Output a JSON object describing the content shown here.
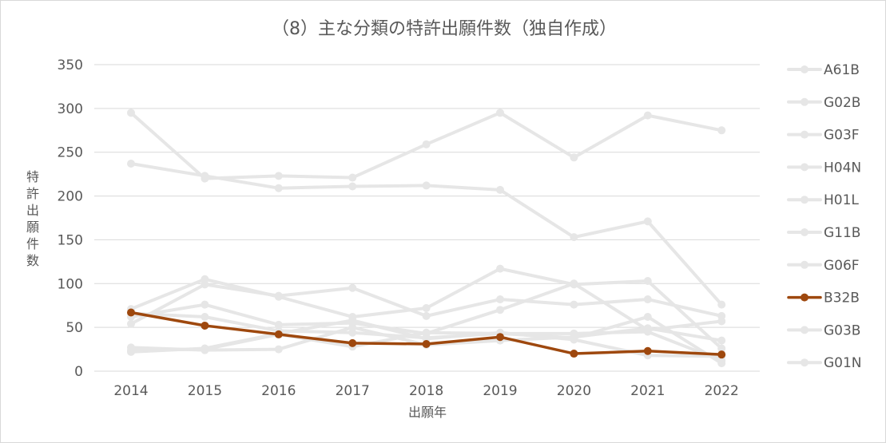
{
  "chart_data": {
    "type": "line",
    "title": "（8）主な分類の特許出願件数（独自作成）",
    "xlabel": "出願年",
    "ylabel_chars": [
      "特",
      "許",
      "出",
      "願",
      "件",
      "数"
    ],
    "categories": [
      "2014",
      "2015",
      "2016",
      "2017",
      "2018",
      "2019",
      "2020",
      "2021",
      "2022"
    ],
    "ylim": [
      0,
      350
    ],
    "yticks": [
      0,
      50,
      100,
      150,
      200,
      250,
      300,
      350
    ],
    "grid": true,
    "legend_position": "right",
    "highlight_series": "B32B",
    "colors": {
      "highlight": "#9e480e",
      "muted": "#e6e6e6",
      "text": "#595959",
      "grid": "#d9d9d9"
    },
    "series": [
      {
        "name": "A61B",
        "values": [
          295,
          220,
          223,
          221,
          259,
          295,
          244,
          292,
          275
        ]
      },
      {
        "name": "G02B",
        "values": [
          237,
          223,
          209,
          211,
          212,
          207,
          153,
          171,
          76
        ]
      },
      {
        "name": "G03F",
        "values": [
          71,
          105,
          85,
          62,
          72,
          117,
          99,
          103,
          26
        ]
      },
      {
        "name": "H04N",
        "values": [
          54,
          99,
          86,
          95,
          63,
          82,
          76,
          82,
          63
        ]
      },
      {
        "name": "H01L",
        "values": [
          62,
          76,
          53,
          55,
          43,
          70,
          100,
          47,
          57
        ]
      },
      {
        "name": "G11B",
        "values": [
          27,
          24,
          25,
          50,
          30,
          35,
          39,
          49,
          35
        ]
      },
      {
        "name": "G06F",
        "values": [
          22,
          26,
          43,
          58,
          37,
          44,
          36,
          18,
          17
        ]
      },
      {
        "name": "B32B",
        "values": [
          67,
          52,
          42,
          32,
          31,
          39,
          20,
          23,
          19
        ]
      },
      {
        "name": "G03B",
        "values": [
          66,
          62,
          46,
          44,
          38,
          43,
          43,
          45,
          12
        ]
      },
      {
        "name": "G01N",
        "values": [
          24,
          25,
          42,
          28,
          44,
          43,
          38,
          62,
          9
        ]
      }
    ]
  }
}
